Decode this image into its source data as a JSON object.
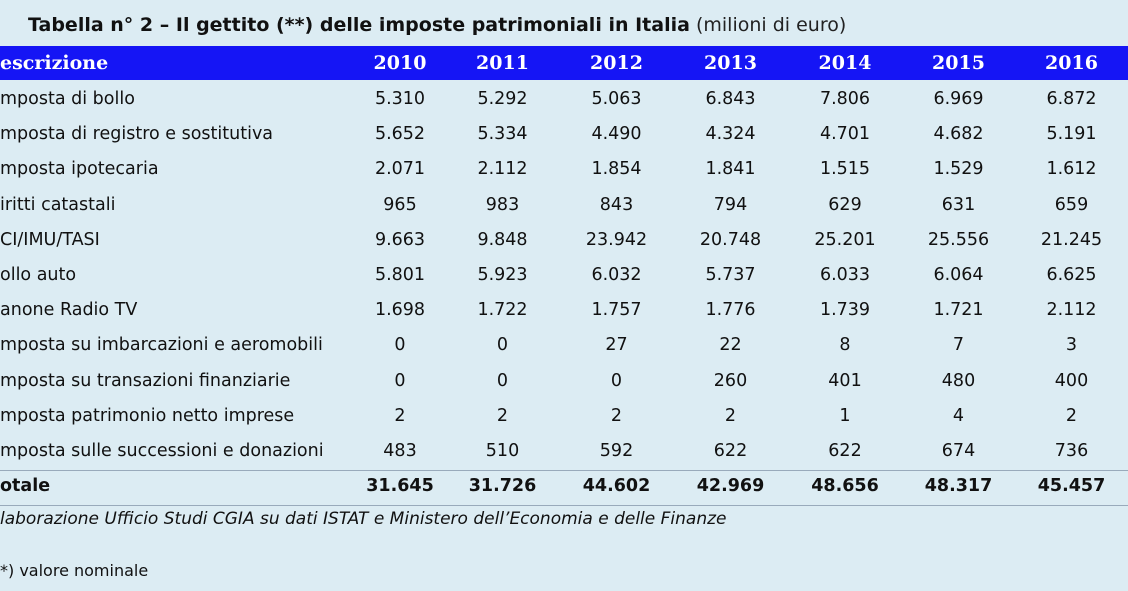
{
  "title": {
    "main": "Tabella n° 2 – Il gettito (**) delle imposte patrimoniali in Italia",
    "unit": "(milioni di euro)"
  },
  "table": {
    "header": [
      "escrizione",
      "2010",
      "2011",
      "2012",
      "2013",
      "2014",
      "2015",
      "2016"
    ],
    "rows": [
      [
        "mposta di bollo",
        "5.310",
        "5.292",
        "5.063",
        "6.843",
        "7.806",
        "6.969",
        "6.872"
      ],
      [
        "mposta di registro e sostitutiva",
        "5.652",
        "5.334",
        "4.490",
        "4.324",
        "4.701",
        "4.682",
        "5.191"
      ],
      [
        "mposta ipotecaria",
        "2.071",
        "2.112",
        "1.854",
        "1.841",
        "1.515",
        "1.529",
        "1.612"
      ],
      [
        "iritti catastali",
        "965",
        "983",
        "843",
        "794",
        "629",
        "631",
        "659"
      ],
      [
        "CI/IMU/TASI",
        "9.663",
        "9.848",
        "23.942",
        "20.748",
        "25.201",
        "25.556",
        "21.245"
      ],
      [
        "ollo auto",
        "5.801",
        "5.923",
        "6.032",
        "5.737",
        "6.033",
        "6.064",
        "6.625"
      ],
      [
        "anone Radio TV",
        "1.698",
        "1.722",
        "1.757",
        "1.776",
        "1.739",
        "1.721",
        "2.112"
      ],
      [
        "mposta su imbarcazioni e aeromobili",
        "0",
        "0",
        "27",
        "22",
        "8",
        "7",
        "3"
      ],
      [
        "mposta su transazioni finanziarie",
        "0",
        "0",
        "0",
        "260",
        "401",
        "480",
        "400"
      ],
      [
        "mposta patrimonio netto imprese",
        "2",
        "2",
        "2",
        "2",
        "1",
        "4",
        "2"
      ],
      [
        "mposta sulle successioni e donazioni",
        "483",
        "510",
        "592",
        "622",
        "622",
        "674",
        "736"
      ]
    ],
    "total": [
      "otale",
      "31.645",
      "31.726",
      "44.602",
      "42.969",
      "48.656",
      "48.317",
      "45.457"
    ]
  },
  "source": "laborazione Ufficio Studi CGIA su dati ISTAT e Ministero dell’Economia e delle Finanze",
  "note": "*) valore nominale"
}
